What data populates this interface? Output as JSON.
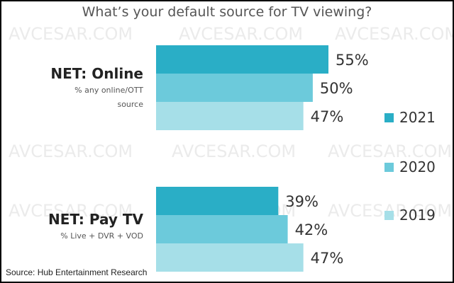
{
  "chart_data": {
    "type": "bar",
    "orientation": "horizontal",
    "title": "What’s your default source for TV viewing?",
    "categories": [
      {
        "label": "NET: Online",
        "sublabel_lines": [
          "% any online/OTT",
          "source"
        ]
      },
      {
        "label": "NET: Pay TV",
        "sublabel_lines": [
          "% Live + DVR + VOD"
        ]
      }
    ],
    "series": [
      {
        "name": "2021",
        "values": [
          55,
          39
        ],
        "color": "#2aaec6"
      },
      {
        "name": "2020",
        "values": [
          50,
          42
        ],
        "color": "#6ccadb"
      },
      {
        "name": "2019",
        "values": [
          47,
          47
        ],
        "color": "#a6dfe8"
      }
    ],
    "value_suffix": "%",
    "xlim": [
      0,
      100
    ],
    "grid": false,
    "legend": "right"
  },
  "source": "Source: Hub Entertainment Research",
  "watermark": "AVCESAR.COM"
}
